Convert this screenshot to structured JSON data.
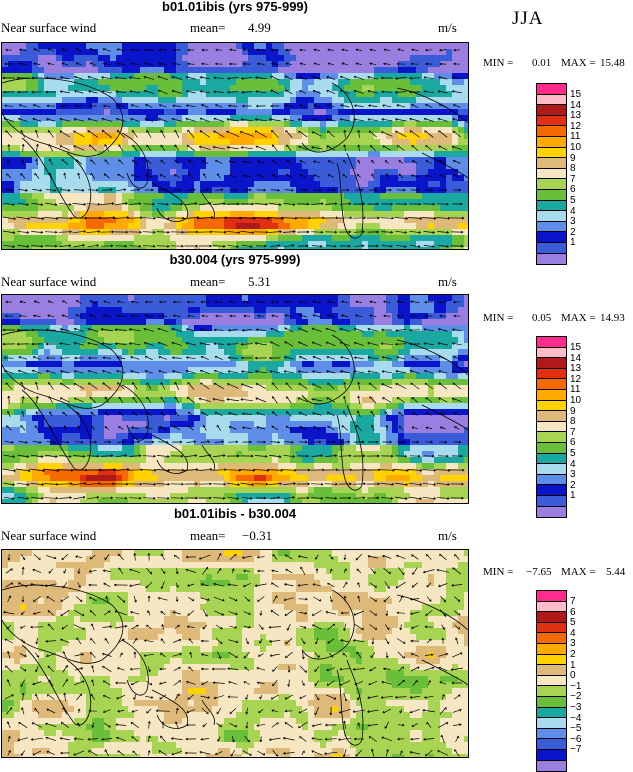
{
  "season": "JJA",
  "colors": {
    "abs_scale": [
      "#9b7fe0",
      "#3a5cd8",
      "#0a14c8",
      "#5e8ee8",
      "#a8dcec",
      "#1aa8a0",
      "#6abf3a",
      "#a8d454",
      "#f6e6c2",
      "#ddb97a",
      "#ffd200",
      "#ffaa00",
      "#f56a00",
      "#e03010",
      "#ae1a1a",
      "#ffbcc8",
      "#ff2c8c"
    ],
    "diff_scale": [
      "#9b7fe0",
      "#0a14c8",
      "#3a5cd8",
      "#5e8ee8",
      "#a8dcec",
      "#1aa8a0",
      "#6abf3a",
      "#a8d454",
      "#f6e6c2",
      "#ddb97a",
      "#ffd200",
      "#ffaa00",
      "#f56a00",
      "#e03010",
      "#ae1a1a",
      "#ffbcc8",
      "#ff2c8c"
    ]
  },
  "panels": [
    {
      "title": "b01.01ibis (yrs 975-999)",
      "variable": "Near surface wind",
      "mean_label": "mean=",
      "mean_value": "4.99",
      "units": "m/s",
      "min_label": "MIN =",
      "min_value": "0.01",
      "max_label": "MAX =",
      "max_value": "15.48",
      "colorbar_labels": [
        "15",
        "14",
        "13",
        "12",
        "11",
        "10",
        "9",
        "8",
        "7",
        "6",
        "5",
        "4",
        "3",
        "2",
        "1"
      ]
    },
    {
      "title": "b30.004 (yrs 975-999)",
      "variable": "Near surface wind",
      "mean_label": "mean=",
      "mean_value": "5.31",
      "units": "m/s",
      "min_label": "MIN =",
      "min_value": "0.05",
      "max_label": "MAX =",
      "max_value": "14.93",
      "colorbar_labels": [
        "15",
        "14",
        "13",
        "12",
        "11",
        "10",
        "9",
        "8",
        "7",
        "6",
        "5",
        "4",
        "3",
        "2",
        "1"
      ]
    },
    {
      "title": "b01.01ibis - b30.004",
      "variable": "Near surface wind",
      "mean_label": "mean=",
      "mean_value": "−0.31",
      "units": "m/s",
      "min_label": "MIN =",
      "min_value": "−7.65",
      "max_label": "MAX =",
      "max_value": "5.44",
      "colorbar_labels": [
        "7",
        "6",
        "5",
        "4",
        "3",
        "2",
        "1",
        "0",
        "−1",
        "−2",
        "−3",
        "−4",
        "−5",
        "−6",
        "−7"
      ]
    }
  ],
  "chart_data": [
    {
      "type": "heatmap",
      "title": "b01.01ibis (yrs 975-999)",
      "field": "Near surface wind",
      "units": "m/s",
      "mean": 4.99,
      "min": 0.01,
      "max": 15.48,
      "color_levels": [
        1,
        2,
        3,
        4,
        5,
        6,
        7,
        8,
        9,
        10,
        11,
        12,
        13,
        14,
        15
      ],
      "overlay": "wind vectors",
      "map": "global, Pacific-centered"
    },
    {
      "type": "heatmap",
      "title": "b30.004 (yrs 975-999)",
      "field": "Near surface wind",
      "units": "m/s",
      "mean": 5.31,
      "min": 0.05,
      "max": 14.93,
      "color_levels": [
        1,
        2,
        3,
        4,
        5,
        6,
        7,
        8,
        9,
        10,
        11,
        12,
        13,
        14,
        15
      ],
      "overlay": "wind vectors",
      "map": "global, Pacific-centered"
    },
    {
      "type": "heatmap",
      "title": "b01.01ibis - b30.004",
      "field": "Near surface wind",
      "units": "m/s",
      "mean": -0.31,
      "min": -7.65,
      "max": 5.44,
      "color_levels": [
        -7,
        -6,
        -5,
        -4,
        -3,
        -2,
        -1,
        0,
        1,
        2,
        3,
        4,
        5,
        6,
        7
      ],
      "overlay": "wind vectors",
      "map": "global, Pacific-centered"
    }
  ]
}
